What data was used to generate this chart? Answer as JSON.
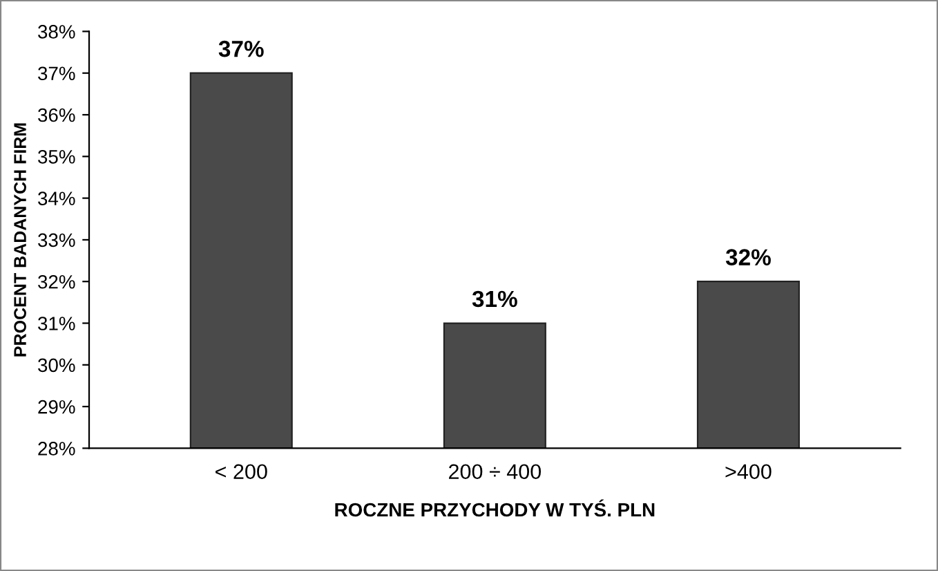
{
  "chart_data": {
    "type": "bar",
    "xlabel": "ROCZNE PRZYCHODY W TYŚ. PLN",
    "ylabel": "PROCENT BADANYCH FIRM",
    "categories": [
      "< 200",
      "200 ÷ 400",
      ">400"
    ],
    "values": [
      37,
      31,
      32
    ],
    "color": "#4a4a4a",
    "value_labels": [
      "37%",
      "31%",
      "32%"
    ],
    "ylim": [
      28,
      38
    ],
    "yticks": [
      {
        "value": 28,
        "label": "28%"
      },
      {
        "value": 29,
        "label": "29%"
      },
      {
        "value": 30,
        "label": "30%"
      },
      {
        "value": 31,
        "label": "31%"
      },
      {
        "value": 32,
        "label": "32%"
      },
      {
        "value": 33,
        "label": "33%"
      },
      {
        "value": 34,
        "label": "34%"
      },
      {
        "value": 35,
        "label": "35%"
      },
      {
        "value": 36,
        "label": "36%"
      },
      {
        "value": 37,
        "label": "37%"
      },
      {
        "value": 38,
        "label": "38%"
      }
    ],
    "grid": false,
    "legend": false
  }
}
